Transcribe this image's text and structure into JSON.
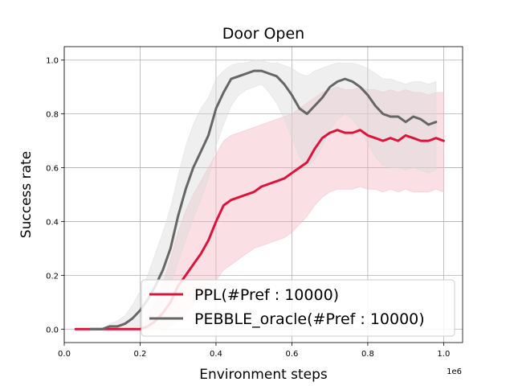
{
  "chart_data": {
    "type": "line",
    "title": "Door Open",
    "xlabel": "Environment steps",
    "ylabel": "Success rate",
    "x_offset_label": "1e6",
    "xlim": [
      0,
      1.05
    ],
    "ylim": [
      -0.05,
      1.05
    ],
    "x_ticks": [
      0.0,
      0.2,
      0.4,
      0.6,
      0.8,
      1.0
    ],
    "x_tick_labels": [
      "0.0",
      "0.2",
      "0.4",
      "0.6",
      "0.8",
      "1.0"
    ],
    "y_ticks": [
      0.0,
      0.2,
      0.4,
      0.6,
      0.8,
      1.0
    ],
    "y_tick_labels": [
      "0.0",
      "0.2",
      "0.4",
      "0.6",
      "0.8",
      "1.0"
    ],
    "grid": true,
    "legend_position": "lower-right",
    "series": [
      {
        "name": "PPL(#Pref : 10000)",
        "color": "#dc143c",
        "band_color": "#f4b6c2",
        "x": [
          0.03,
          0.05,
          0.1,
          0.15,
          0.2,
          0.22,
          0.24,
          0.26,
          0.28,
          0.3,
          0.32,
          0.34,
          0.36,
          0.38,
          0.4,
          0.42,
          0.44,
          0.46,
          0.48,
          0.5,
          0.52,
          0.54,
          0.56,
          0.58,
          0.6,
          0.62,
          0.64,
          0.66,
          0.68,
          0.7,
          0.72,
          0.74,
          0.76,
          0.78,
          0.8,
          0.82,
          0.84,
          0.86,
          0.88,
          0.9,
          0.92,
          0.94,
          0.96,
          0.98,
          1.0
        ],
        "values": [
          0.0,
          0.0,
          0.0,
          0.0,
          0.0,
          0.01,
          0.03,
          0.06,
          0.1,
          0.16,
          0.2,
          0.24,
          0.28,
          0.33,
          0.4,
          0.46,
          0.48,
          0.49,
          0.5,
          0.51,
          0.53,
          0.54,
          0.55,
          0.56,
          0.58,
          0.6,
          0.62,
          0.67,
          0.71,
          0.73,
          0.74,
          0.73,
          0.73,
          0.74,
          0.72,
          0.71,
          0.7,
          0.71,
          0.7,
          0.72,
          0.71,
          0.7,
          0.7,
          0.71,
          0.7
        ],
        "lower": [
          0.0,
          0.0,
          0.0,
          0.0,
          0.0,
          0.0,
          0.0,
          0.0,
          0.01,
          0.03,
          0.06,
          0.09,
          0.12,
          0.15,
          0.18,
          0.22,
          0.24,
          0.26,
          0.28,
          0.3,
          0.31,
          0.32,
          0.33,
          0.34,
          0.36,
          0.39,
          0.42,
          0.46,
          0.49,
          0.51,
          0.52,
          0.52,
          0.52,
          0.53,
          0.52,
          0.52,
          0.51,
          0.52,
          0.51,
          0.52,
          0.51,
          0.51,
          0.51,
          0.52,
          0.51
        ],
        "upper": [
          0.0,
          0.0,
          0.0,
          0.0,
          0.0,
          0.04,
          0.1,
          0.17,
          0.26,
          0.36,
          0.44,
          0.5,
          0.55,
          0.6,
          0.65,
          0.7,
          0.72,
          0.73,
          0.74,
          0.75,
          0.76,
          0.77,
          0.78,
          0.79,
          0.8,
          0.82,
          0.84,
          0.86,
          0.88,
          0.89,
          0.9,
          0.89,
          0.89,
          0.9,
          0.89,
          0.89,
          0.88,
          0.89,
          0.88,
          0.89,
          0.88,
          0.88,
          0.87,
          0.88,
          0.88
        ]
      },
      {
        "name": "PEBBLE_oracle(#Pref : 10000)",
        "color": "#666666",
        "band_color": "#d9d9d9",
        "x": [
          0.07,
          0.1,
          0.12,
          0.14,
          0.16,
          0.18,
          0.2,
          0.22,
          0.24,
          0.26,
          0.28,
          0.3,
          0.32,
          0.34,
          0.36,
          0.38,
          0.4,
          0.42,
          0.44,
          0.46,
          0.48,
          0.5,
          0.52,
          0.54,
          0.56,
          0.58,
          0.6,
          0.62,
          0.64,
          0.66,
          0.68,
          0.7,
          0.72,
          0.74,
          0.76,
          0.78,
          0.8,
          0.82,
          0.84,
          0.86,
          0.88,
          0.9,
          0.92,
          0.94,
          0.96,
          0.98
        ],
        "values": [
          0.0,
          0.0,
          0.01,
          0.01,
          0.02,
          0.04,
          0.07,
          0.11,
          0.16,
          0.22,
          0.3,
          0.42,
          0.52,
          0.6,
          0.66,
          0.72,
          0.82,
          0.88,
          0.93,
          0.94,
          0.95,
          0.96,
          0.96,
          0.95,
          0.94,
          0.91,
          0.87,
          0.82,
          0.8,
          0.83,
          0.86,
          0.9,
          0.92,
          0.93,
          0.92,
          0.9,
          0.87,
          0.83,
          0.8,
          0.79,
          0.79,
          0.77,
          0.79,
          0.78,
          0.76,
          0.77
        ],
        "lower": [
          0.0,
          0.0,
          0.0,
          0.0,
          0.0,
          0.0,
          0.01,
          0.03,
          0.06,
          0.1,
          0.16,
          0.25,
          0.33,
          0.41,
          0.48,
          0.56,
          0.68,
          0.76,
          0.83,
          0.87,
          0.89,
          0.9,
          0.91,
          0.88,
          0.84,
          0.78,
          0.71,
          0.64,
          0.6,
          0.63,
          0.68,
          0.74,
          0.78,
          0.8,
          0.78,
          0.74,
          0.69,
          0.64,
          0.61,
          0.6,
          0.6,
          0.59,
          0.6,
          0.59,
          0.58,
          0.59
        ],
        "upper": [
          0.0,
          0.0,
          0.02,
          0.03,
          0.05,
          0.09,
          0.14,
          0.2,
          0.28,
          0.36,
          0.45,
          0.57,
          0.68,
          0.76,
          0.82,
          0.86,
          0.93,
          0.96,
          0.98,
          0.99,
          0.99,
          1.0,
          1.0,
          0.99,
          0.99,
          0.98,
          0.97,
          0.95,
          0.94,
          0.96,
          0.97,
          0.98,
          0.99,
          0.99,
          0.99,
          0.98,
          0.97,
          0.95,
          0.93,
          0.93,
          0.92,
          0.91,
          0.92,
          0.92,
          0.91,
          0.92
        ]
      }
    ]
  }
}
